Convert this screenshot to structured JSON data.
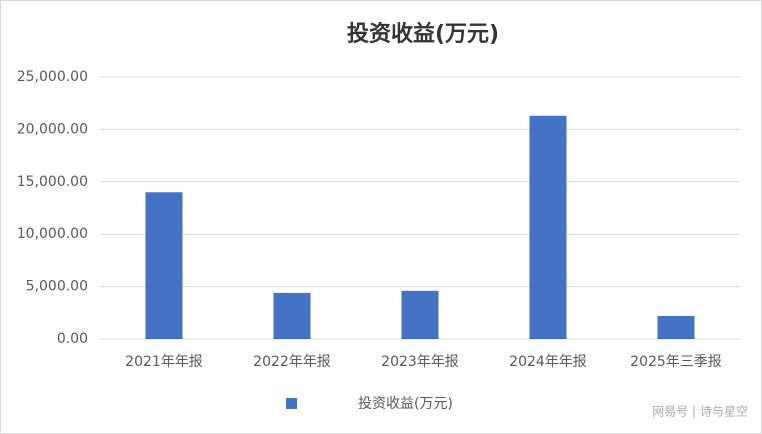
{
  "chart_data": {
    "type": "bar",
    "title": "投资收益(万元)",
    "categories": [
      "2021年年报",
      "2022年年报",
      "2023年年报",
      "2024年年报",
      "2025年三季报"
    ],
    "series": [
      {
        "name": "投资收益(万元)",
        "color": "#4472c4",
        "values": [
          14000,
          4400,
          4600,
          21300,
          2200
        ]
      }
    ],
    "ylim": [
      0,
      25000
    ],
    "yticks": [
      {
        "value": 0,
        "label": "0.00"
      },
      {
        "value": 5000,
        "label": "5,000.00"
      },
      {
        "value": 10000,
        "label": "10,000.00"
      },
      {
        "value": 15000,
        "label": "15,000.00"
      },
      {
        "value": 20000,
        "label": "20,000.00"
      },
      {
        "value": 25000,
        "label": "25,000.00"
      }
    ],
    "grid": true,
    "legend": "bottom"
  },
  "watermark": "网易号 | 诗与星空"
}
